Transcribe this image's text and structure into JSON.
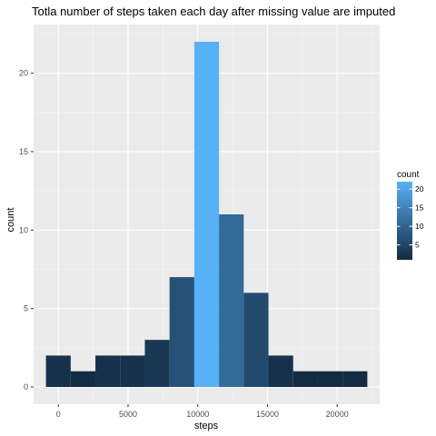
{
  "chart_data": {
    "type": "bar",
    "title": "Totla number of steps taken each day after missing value are imputed",
    "xlabel": "steps",
    "ylabel": "count",
    "binwidth": 1773,
    "bins": [
      {
        "x": 0,
        "count": 2
      },
      {
        "x": 1773,
        "count": 1
      },
      {
        "x": 3546,
        "count": 2
      },
      {
        "x": 5319,
        "count": 2
      },
      {
        "x": 7092,
        "count": 3
      },
      {
        "x": 8865,
        "count": 7
      },
      {
        "x": 10638,
        "count": 22
      },
      {
        "x": 12411,
        "count": 11
      },
      {
        "x": 14184,
        "count": 6
      },
      {
        "x": 15957,
        "count": 2
      },
      {
        "x": 17730,
        "count": 1
      },
      {
        "x": 19503,
        "count": 1
      },
      {
        "x": 21276,
        "count": 1
      }
    ],
    "xlim": [
      -1773,
      23049
    ],
    "ylim": [
      -1.1,
      23.1
    ],
    "xticks": [
      0,
      5000,
      10000,
      15000,
      20000
    ],
    "yticks": [
      0,
      5,
      10,
      15,
      20
    ],
    "xtick_labels": [
      "0",
      "5000",
      "10000",
      "15000",
      "20000"
    ],
    "ytick_labels": [
      "0",
      "5",
      "10",
      "15",
      "20"
    ],
    "grid": true,
    "legend": {
      "title": "count",
      "position": "right",
      "labels": [
        "20",
        "15",
        "10",
        "5"
      ],
      "values": [
        20,
        15,
        10,
        5
      ],
      "range": [
        1,
        22
      ]
    },
    "colors": {
      "low": "#132B43",
      "high": "#56B1F7",
      "panel": "#EBEBEB",
      "grid_major": "#FFFFFF",
      "grid_minor": "#F5F5F5"
    }
  }
}
